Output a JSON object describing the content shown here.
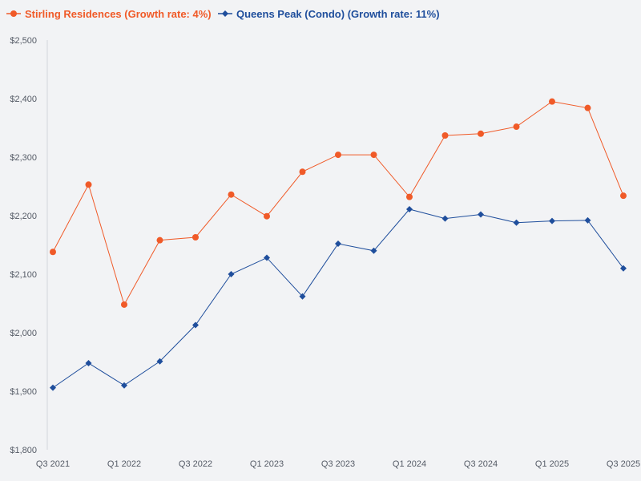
{
  "chart_data": {
    "type": "line",
    "title": "",
    "xlabel": "",
    "ylabel": "",
    "ylim": [
      1800,
      2500
    ],
    "y_ticks": [
      1800,
      1900,
      2000,
      2100,
      2200,
      2300,
      2400,
      2500
    ],
    "y_tick_labels": [
      "$1,800",
      "$1,900",
      "$2,000",
      "$2,100",
      "$2,200",
      "$2,300",
      "$2,400",
      "$2,500"
    ],
    "x": [
      "Q3 2021",
      "Q4 2021",
      "Q1 2022",
      "Q2 2022",
      "Q3 2022",
      "Q4 2022",
      "Q1 2023",
      "Q2 2023",
      "Q3 2023",
      "Q4 2023",
      "Q1 2024",
      "Q2 2024",
      "Q3 2024",
      "Q4 2024",
      "Q1 2025",
      "Q2 2025",
      "Q3 2025"
    ],
    "x_tick_labels": [
      "Q3 2021",
      "",
      "Q1 2022",
      "",
      "Q3 2022",
      "",
      "Q1 2023",
      "",
      "Q3 2023",
      "",
      "Q1 2024",
      "",
      "Q3 2024",
      "",
      "Q1 2025",
      "",
      "Q3 2025"
    ],
    "grid": false,
    "legend_position": "top-left",
    "series": [
      {
        "name": "Stirling Residences (Growth rate: 4%)",
        "color": "#f05a28",
        "marker": "circle",
        "values": [
          2138,
          2253,
          2048,
          2158,
          2163,
          2236,
          2199,
          2275,
          2304,
          2304,
          2232,
          2337,
          2340,
          2352,
          2395,
          2384,
          2234
        ]
      },
      {
        "name": "Queens Peak (Condo) (Growth rate: 11%)",
        "color": "#1f4e9c",
        "marker": "diamond",
        "values": [
          1906,
          1948,
          1910,
          1951,
          2013,
          2100,
          2128,
          2062,
          2152,
          2140,
          2211,
          2195,
          2202,
          2188,
          2191,
          2192,
          2110
        ]
      }
    ]
  }
}
